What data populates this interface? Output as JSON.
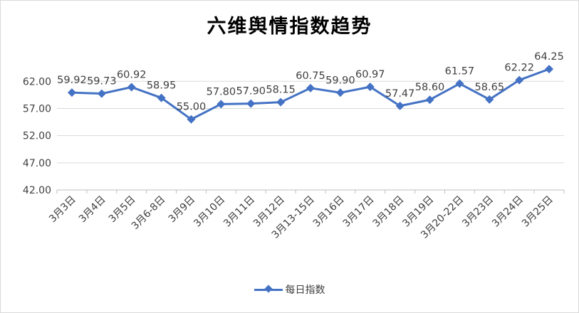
{
  "chart_data": {
    "type": "line",
    "title": "六维舆情指数趋势",
    "xlabel": "",
    "ylabel": "",
    "ylim": [
      42.0,
      64.0
    ],
    "yticks": [
      "42.00",
      "47.00",
      "52.00",
      "57.00",
      "62.00"
    ],
    "ytick_values": [
      42,
      47,
      52,
      57,
      62
    ],
    "grid": true,
    "legend_position": "bottom",
    "categories": [
      "3月3日",
      "3月4日",
      "3月5日",
      "3月6-8日",
      "3月9日",
      "3月10日",
      "3月11日",
      "3月12日",
      "3月13-15日",
      "3月16日",
      "3月17日",
      "3月18日",
      "3月19日",
      "3月20-22日",
      "3月23日",
      "3月24日",
      "3月25日"
    ],
    "series": [
      {
        "name": "每日指数",
        "color": "#4472c4",
        "values": [
          59.92,
          59.73,
          60.92,
          58.95,
          55.0,
          57.8,
          57.9,
          58.15,
          60.75,
          59.9,
          60.97,
          57.47,
          58.6,
          61.57,
          58.65,
          62.22,
          64.25
        ],
        "labels": [
          "59.92",
          "59.73",
          "60.92",
          "58.95",
          "55.00",
          "57.80",
          "57.90",
          "58.15",
          "60.75",
          "59.90",
          "60.97",
          "57.47",
          "58.60",
          "61.57",
          "58.65",
          "62.22",
          "64.25"
        ]
      }
    ]
  }
}
